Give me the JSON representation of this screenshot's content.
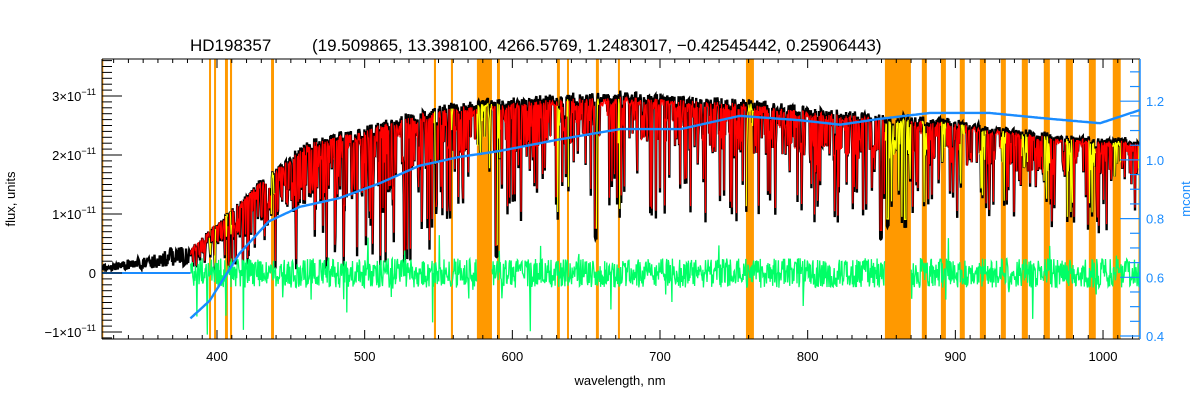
{
  "chart_data": {
    "type": "line",
    "title": {
      "object": "HD198357",
      "params": "(19.509865, 13.398100, 4266.5769, 1.2483017, −0.42545442, 0.25906443)"
    },
    "xlabel": "wavelength, nm",
    "ylabel": "flux, units",
    "y2label": "mcont",
    "xlim": [
      322,
      1025
    ],
    "ylim_units_1e-11": [
      -1.12,
      3.63
    ],
    "y2lim": [
      0.39,
      1.345
    ],
    "x_ticks": [
      "400",
      "500",
      "600",
      "700",
      "800",
      "900",
      "1000"
    ],
    "x_tick_values": [
      400,
      500,
      600,
      700,
      800,
      900,
      1000
    ],
    "y_ticks": [
      {
        "value": -1,
        "base": "−1×10",
        "exp": "−11"
      },
      {
        "value": 0,
        "base": "0",
        "exp": ""
      },
      {
        "value": 1,
        "base": "1×10",
        "exp": "−11"
      },
      {
        "value": 2,
        "base": "2×10",
        "exp": "−11"
      },
      {
        "value": 3,
        "base": "3×10",
        "exp": "−11"
      }
    ],
    "y2_ticks": [
      "0.4",
      "0.6",
      "0.8",
      "1.0",
      "1.2"
    ],
    "y2_tick_values": [
      0.4,
      0.6,
      0.8,
      1.0,
      1.2
    ],
    "masked_regions_nm": [
      [
        320,
        323
      ],
      [
        394.6,
        395.9
      ],
      [
        398.0,
        399.3
      ],
      [
        405.4,
        407.4
      ],
      [
        408.8,
        410.2
      ],
      [
        436.6,
        438.6
      ],
      [
        546.9,
        548.3
      ],
      [
        558.4,
        559.8
      ],
      [
        576.0,
        586.2
      ],
      [
        589.6,
        591.6
      ],
      [
        630.2,
        632.2
      ],
      [
        637.0,
        638.3
      ],
      [
        656.6,
        658.6
      ],
      [
        671.5,
        672.8
      ],
      [
        758.2,
        763.6
      ],
      [
        852.3,
        869.9
      ],
      [
        877.3,
        880.7
      ],
      [
        890.2,
        893.6
      ],
      [
        903.0,
        906.4
      ],
      [
        916.6,
        920.7
      ],
      [
        930.8,
        934.2
      ],
      [
        945.0,
        949.1
      ],
      [
        959.9,
        964.0
      ],
      [
        974.8,
        979.6
      ],
      [
        990.4,
        995.1
      ],
      [
        1006.6,
        1012.0
      ],
      [
        1024,
        1026
      ]
    ],
    "series": [
      {
        "name": "observed flux",
        "color": "#000000",
        "units": "1e-11",
        "continuum_x": [
          322,
          355,
          372,
          382,
          409,
          432,
          463,
          497,
          537,
          578,
          632,
          673,
          727,
          761,
          795,
          849,
          896,
          930,
          971,
          998,
          1025
        ],
        "continuum_y": [
          0.14,
          0.3,
          0.47,
          0.42,
          1.1,
          1.66,
          2.29,
          2.5,
          2.8,
          2.97,
          3.05,
          3.1,
          3.02,
          2.98,
          2.85,
          2.73,
          2.64,
          2.51,
          2.37,
          2.34,
          2.29
        ],
        "strong_lines": [
          [
            434.0,
            0.5
          ],
          [
            486.1,
            0.55
          ],
          [
            517.3,
            0.45
          ],
          [
            527.0,
            0.5
          ],
          [
            589.3,
            0.9
          ],
          [
            656.3,
            0.8
          ],
          [
            849.8,
            0.78
          ],
          [
            854.2,
            0.7
          ],
          [
            866.2,
            0.7
          ]
        ]
      },
      {
        "name": "model",
        "color": "#ff0000",
        "masked_color": "#ffff00",
        "start_nm": 382
      },
      {
        "name": "residuals",
        "color": "#00ff66",
        "units": "1e-11",
        "typical_amplitude": 0.25,
        "start_nm": 382
      },
      {
        "name": "mcont",
        "axis": "right",
        "color": "#1a8cff",
        "x": [
          382,
          395,
          415,
          435,
          456,
          483,
          510,
          537,
          564,
          591,
          632,
          673,
          714,
          754,
          795,
          822,
          849,
          883,
          923,
          964,
          998,
          1025
        ],
        "y": [
          0.46,
          0.52,
          0.68,
          0.79,
          0.84,
          0.87,
          0.92,
          0.98,
          1.01,
          1.03,
          1.07,
          1.105,
          1.105,
          1.15,
          1.135,
          1.12,
          1.14,
          1.16,
          1.16,
          1.14,
          1.125,
          1.17
        ]
      }
    ],
    "colors": {
      "mask": "#ff9900",
      "axis": "#000000",
      "right_axis": "#1a8cff"
    }
  }
}
